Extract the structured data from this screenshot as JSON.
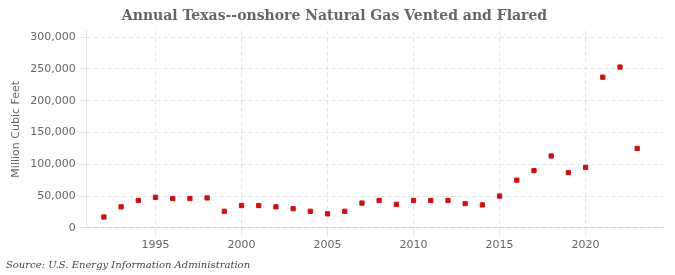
{
  "chart_data": {
    "type": "scatter",
    "title": "Annual Texas--onshore Natural Gas Vented and Flared",
    "ylabel": "Million Cubic Feet",
    "annotations": [
      "Source: U.S. Energy Information Administration"
    ],
    "x": [
      1992,
      1993,
      1994,
      1995,
      1996,
      1997,
      1998,
      1999,
      2000,
      2001,
      2002,
      2003,
      2004,
      2005,
      2006,
      2007,
      2008,
      2009,
      2010,
      2011,
      2012,
      2013,
      2014,
      2015,
      2016,
      2017,
      2018,
      2019,
      2020,
      2021,
      2022,
      2023
    ],
    "values": [
      17000,
      33000,
      43000,
      48000,
      46000,
      46000,
      47000,
      26000,
      35000,
      35000,
      33000,
      30000,
      26000,
      22000,
      26000,
      39000,
      43000,
      37000,
      43000,
      43000,
      43000,
      38000,
      36000,
      50000,
      75000,
      90000,
      113000,
      87000,
      95000,
      237000,
      253000,
      125000
    ],
    "color": "#cc1111",
    "marker": "square",
    "xlim": [
      1991.0,
      2024.5
    ],
    "xticks": [
      1995,
      2000,
      2005,
      2010,
      2015,
      2020
    ],
    "ylim": [
      0,
      310000
    ],
    "yticks": [
      0,
      {
        "value": 50000,
        "label": "50,000"
      },
      {
        "value": 100000,
        "label": "100,000"
      },
      {
        "value": 150000,
        "label": "150,000"
      },
      {
        "value": 200000,
        "label": "200,000"
      },
      {
        "value": 250000,
        "label": "250,000"
      },
      {
        "value": 300000,
        "label": "300,000"
      }
    ],
    "grid": true
  }
}
